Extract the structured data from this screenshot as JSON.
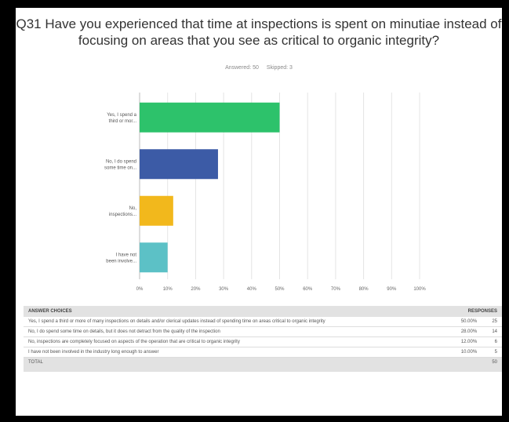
{
  "question": {
    "title": "Q31 Have you experienced that time at inspections is spent on minutiae instead of focusing on areas that you see as critical to organic integrity?",
    "answered": "Answered: 50",
    "skipped": "Skipped: 3"
  },
  "chart_data": {
    "type": "bar",
    "orientation": "horizontal",
    "categories": [
      [
        "Yes, I spend a",
        "third or mor..."
      ],
      [
        "No, I do spend",
        "some time on..."
      ],
      [
        "No,",
        "inspections..."
      ],
      [
        "I have not",
        "been involve..."
      ]
    ],
    "values": [
      50,
      28,
      12,
      10
    ],
    "colors": [
      "#2dc26b",
      "#3c5ba6",
      "#f2b81c",
      "#5cc1c6"
    ],
    "xlim": [
      0,
      100
    ],
    "ticks": [
      "0%",
      "10%",
      "20%",
      "30%",
      "40%",
      "50%",
      "60%",
      "70%",
      "80%",
      "90%",
      "100%"
    ],
    "grid": true
  },
  "table": {
    "headers": [
      "ANSWER CHOICES",
      "RESPONSES"
    ],
    "rows": [
      {
        "choice": "Yes, I spend a third or more of many inspections on details and/or clerical updates instead of spending time on areas critical to organic integrity",
        "pct": "50.00%",
        "count": "25"
      },
      {
        "choice": "No, I do spend some time on details, but it does not detract from the quality of the inspection",
        "pct": "28.00%",
        "count": "14"
      },
      {
        "choice": "No, inspections are completely focused on aspects of the operation that are critical to organic integrity",
        "pct": "12.00%",
        "count": "6"
      },
      {
        "choice": "I have not been involved in the industry long enough to answer",
        "pct": "10.00%",
        "count": "5"
      }
    ],
    "total_label": "TOTAL",
    "total": "50"
  }
}
